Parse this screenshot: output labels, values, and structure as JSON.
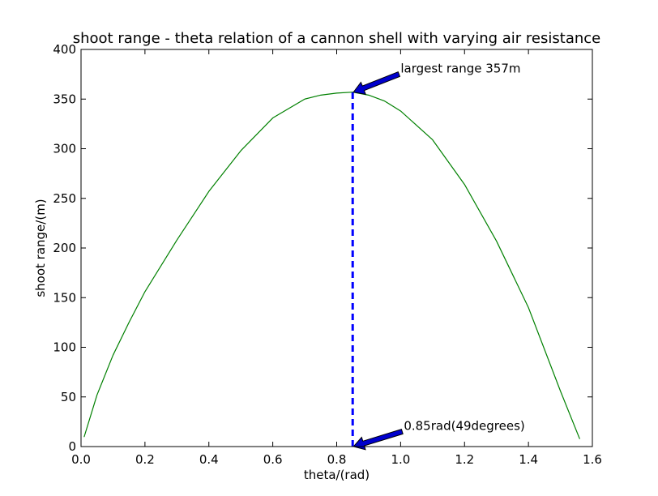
{
  "chart_data": {
    "type": "line",
    "title": "shoot range - theta relation of a cannon shell with varying air resistance",
    "xlabel": "theta/(rad)",
    "ylabel": "shoot range/(m)",
    "xlim": [
      0.0,
      1.6
    ],
    "ylim": [
      0,
      400
    ],
    "xticks": [
      0.0,
      0.2,
      0.4,
      0.6,
      0.8,
      1.0,
      1.2,
      1.4,
      1.6
    ],
    "xtick_labels": [
      "0.0",
      "0.2",
      "0.4",
      "0.6",
      "0.8",
      "1.0",
      "1.2",
      "1.4",
      "1.6"
    ],
    "yticks": [
      0,
      50,
      100,
      150,
      200,
      250,
      300,
      350,
      400
    ],
    "ytick_labels": [
      "0",
      "50",
      "100",
      "150",
      "200",
      "250",
      "300",
      "350",
      "400"
    ],
    "grid": false,
    "series": [
      {
        "color": "#008000",
        "x": [
          0.01,
          0.05,
          0.1,
          0.15,
          0.2,
          0.3,
          0.4,
          0.5,
          0.6,
          0.7,
          0.75,
          0.8,
          0.85,
          0.9,
          0.95,
          1.0,
          1.1,
          1.2,
          1.3,
          1.4,
          1.5,
          1.56
        ],
        "y": [
          10,
          52,
          92,
          125,
          156,
          208,
          257,
          298,
          331,
          350,
          354,
          356,
          357,
          354,
          348,
          338,
          309,
          264,
          207,
          140,
          56,
          8
        ]
      }
    ],
    "reference_line": {
      "x": 0.85,
      "y_from": 0,
      "y_to": 357,
      "color": "#0000ff",
      "style": "dashed"
    },
    "annotations": [
      {
        "text": "largest range 357m",
        "point": {
          "x": 0.85,
          "y": 357
        },
        "text_pos": {
          "x": 1.0,
          "y": 380
        },
        "arrow_color": "#0000cc"
      },
      {
        "text": "0.85rad(49degrees)",
        "point": {
          "x": 0.85,
          "y": 0
        },
        "text_pos": {
          "x": 1.01,
          "y": 20
        },
        "arrow_color": "#0000cc"
      }
    ]
  }
}
